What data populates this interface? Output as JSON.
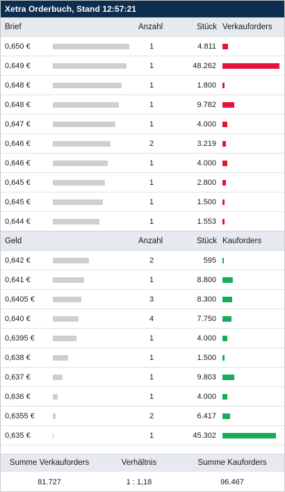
{
  "title": "Xetra Orderbuch, Stand 12:57:21",
  "colors": {
    "title_bg": "#0e2e4f",
    "sell_bar": "#e2143a",
    "buy_bar": "#1aaa5c",
    "depth_bar": "#cfcfcf"
  },
  "ask": {
    "header": {
      "price": "Brief",
      "count": "Anzahl",
      "quantity": "Stück",
      "orders": "Verkauforders"
    },
    "rows": [
      {
        "price": "0,650 €",
        "count": "1",
        "quantity": "4.811",
        "qty_value": 4811,
        "depth_fraction": 1.0
      },
      {
        "price": "0,649 €",
        "count": "1",
        "quantity": "48.262",
        "qty_value": 48262,
        "depth_fraction": 0.96
      },
      {
        "price": "0,648 €",
        "count": "1",
        "quantity": "1.800",
        "qty_value": 1800,
        "depth_fraction": 0.9
      },
      {
        "price": "0,648 €",
        "count": "1",
        "quantity": "9.782",
        "qty_value": 9782,
        "depth_fraction": 0.86
      },
      {
        "price": "0,647 €",
        "count": "1",
        "quantity": "4.000",
        "qty_value": 4000,
        "depth_fraction": 0.82
      },
      {
        "price": "0,646 €",
        "count": "2",
        "quantity": "3.219",
        "qty_value": 3219,
        "depth_fraction": 0.75
      },
      {
        "price": "0,646 €",
        "count": "1",
        "quantity": "4.000",
        "qty_value": 4000,
        "depth_fraction": 0.72
      },
      {
        "price": "0,645 €",
        "count": "1",
        "quantity": "2.800",
        "qty_value": 2800,
        "depth_fraction": 0.68
      },
      {
        "price": "0,645 €",
        "count": "1",
        "quantity": "1.500",
        "qty_value": 1500,
        "depth_fraction": 0.65
      },
      {
        "price": "0,644 €",
        "count": "1",
        "quantity": "1.553",
        "qty_value": 1553,
        "depth_fraction": 0.61
      }
    ]
  },
  "bid": {
    "header": {
      "price": "Geld",
      "count": "Anzahl",
      "quantity": "Stück",
      "orders": "Kauforders"
    },
    "rows": [
      {
        "price": "0,642 €",
        "count": "2",
        "quantity": "595",
        "qty_value": 595,
        "depth_fraction": 0.47
      },
      {
        "price": "0,641 €",
        "count": "1",
        "quantity": "8.800",
        "qty_value": 8800,
        "depth_fraction": 0.41
      },
      {
        "price": "0,6405 €",
        "count": "3",
        "quantity": "8.300",
        "qty_value": 8300,
        "depth_fraction": 0.37
      },
      {
        "price": "0,640 €",
        "count": "4",
        "quantity": "7.750",
        "qty_value": 7750,
        "depth_fraction": 0.34
      },
      {
        "price": "0,6395 €",
        "count": "1",
        "quantity": "4.000",
        "qty_value": 4000,
        "depth_fraction": 0.31
      },
      {
        "price": "0,638 €",
        "count": "1",
        "quantity": "1.500",
        "qty_value": 1500,
        "depth_fraction": 0.2
      },
      {
        "price": "0,637 €",
        "count": "1",
        "quantity": "9.803",
        "qty_value": 9803,
        "depth_fraction": 0.13
      },
      {
        "price": "0,636 €",
        "count": "1",
        "quantity": "4.000",
        "qty_value": 4000,
        "depth_fraction": 0.06
      },
      {
        "price": "0,6355 €",
        "count": "2",
        "quantity": "6.417",
        "qty_value": 6417,
        "depth_fraction": 0.035
      },
      {
        "price": "0,635 €",
        "count": "1",
        "quantity": "45.302",
        "qty_value": 45302,
        "depth_fraction": 0.01
      }
    ]
  },
  "summary": {
    "sell_label": "Summe Verkauforders",
    "ratio_label": "Verhältnis",
    "buy_label": "Summe Kauforders",
    "sell_total": "81.727",
    "ratio": "1 : 1,18",
    "buy_total": "96.467"
  }
}
